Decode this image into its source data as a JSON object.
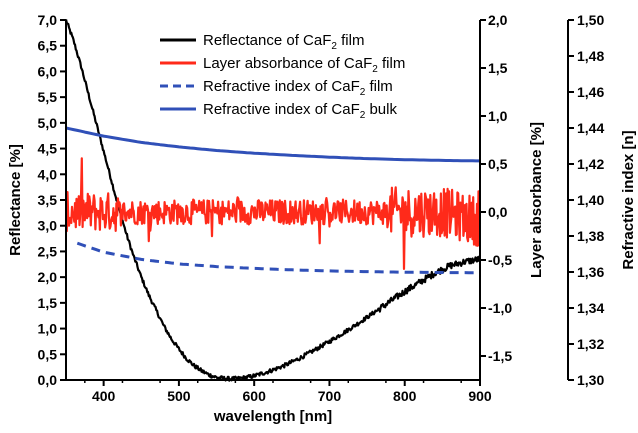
{
  "chart_data": {
    "type": "line",
    "xlabel": "wavelength [nm]",
    "x_range": [
      350,
      900
    ],
    "x_ticks": [
      "400",
      "500",
      "600",
      "700",
      "800",
      "900"
    ],
    "left_axis": {
      "label": "Reflectance [%]",
      "range": [
        0,
        7
      ],
      "ticks": [
        "0,0",
        "0,5",
        "1,0",
        "1,5",
        "2,0",
        "2,5",
        "3,0",
        "3,5",
        "4,0",
        "4,5",
        "5,0",
        "5,5",
        "6,0",
        "6,5",
        "7,0"
      ]
    },
    "right_axis_1": {
      "label": "Layer absorbance [%]",
      "range": [
        -1.75,
        2.0
      ],
      "ticks": [
        "-1,5",
        "-1,0",
        "-0,5",
        "0,0",
        "0,5",
        "1,0",
        "1,5",
        "2,0"
      ]
    },
    "right_axis_2": {
      "label": "Refractive index [n]",
      "range": [
        1.3,
        1.5
      ],
      "ticks": [
        "1,30",
        "1,32",
        "1,34",
        "1,36",
        "1,38",
        "1,40",
        "1,42",
        "1,44",
        "1,46",
        "1,48",
        "1,50"
      ]
    },
    "legend": {
      "placement": "top-center",
      "entries": [
        {
          "text": "Reflectance of CaF",
          "sub": "2",
          "suffix": " film",
          "color": "#000000",
          "dashed": false
        },
        {
          "text": "Layer absorbance of CaF",
          "sub": "2",
          "suffix": " film",
          "color": "#ff2a1a",
          "dashed": false
        },
        {
          "text": "Refractive index of CaF",
          "sub": "2",
          "suffix": " film",
          "color": "#3050b8",
          "dashed": true
        },
        {
          "text": "Refractive index of CaF",
          "sub": "2",
          "suffix": " bulk",
          "color": "#3050b8",
          "dashed": false
        }
      ]
    },
    "series": [
      {
        "axis": "left",
        "color": "#000000",
        "noisy": true,
        "noise": 0.08,
        "x": [
          350,
          360,
          370,
          380,
          390,
          400,
          410,
          420,
          430,
          440,
          450,
          460,
          470,
          480,
          490,
          500,
          510,
          520,
          530,
          540,
          550,
          560,
          570,
          580,
          590,
          600,
          620,
          640,
          660,
          680,
          700,
          720,
          740,
          760,
          780,
          800,
          820,
          840,
          860,
          880,
          900
        ],
        "y": [
          7.0,
          6.6,
          6.1,
          5.55,
          5.0,
          4.45,
          3.9,
          3.35,
          2.85,
          2.4,
          2.0,
          1.65,
          1.35,
          1.05,
          0.8,
          0.6,
          0.42,
          0.28,
          0.18,
          0.1,
          0.05,
          0.03,
          0.02,
          0.03,
          0.05,
          0.08,
          0.17,
          0.28,
          0.42,
          0.58,
          0.75,
          0.93,
          1.12,
          1.32,
          1.52,
          1.72,
          1.9,
          2.08,
          2.22,
          2.3,
          2.35
        ]
      },
      {
        "axis": "right1",
        "color": "#ff2a1a",
        "noisy": true,
        "noise": 0.13,
        "spikes": true,
        "x": [
          350,
          400,
          450,
          500,
          550,
          600,
          650,
          700,
          750,
          800,
          850,
          900
        ],
        "y": [
          0.0,
          0.0,
          0.0,
          0.0,
          0.0,
          0.0,
          0.0,
          0.0,
          0.0,
          0.0,
          0.0,
          -0.1
        ]
      },
      {
        "axis": "right2",
        "color": "#3050b8",
        "dashed": true,
        "x": [
          365,
          400,
          450,
          500,
          550,
          600,
          650,
          700,
          750,
          800,
          850,
          900
        ],
        "y": [
          1.376,
          1.371,
          1.367,
          1.3645,
          1.363,
          1.362,
          1.3612,
          1.3606,
          1.3602,
          1.3599,
          1.3597,
          1.3596
        ]
      },
      {
        "axis": "right2",
        "color": "#3050b8",
        "dashed": false,
        "x": [
          350,
          400,
          450,
          500,
          550,
          600,
          650,
          700,
          750,
          800,
          850,
          900
        ],
        "y": [
          1.44,
          1.4355,
          1.432,
          1.4295,
          1.4275,
          1.426,
          1.4248,
          1.4238,
          1.423,
          1.4224,
          1.422,
          1.4217
        ]
      }
    ]
  }
}
